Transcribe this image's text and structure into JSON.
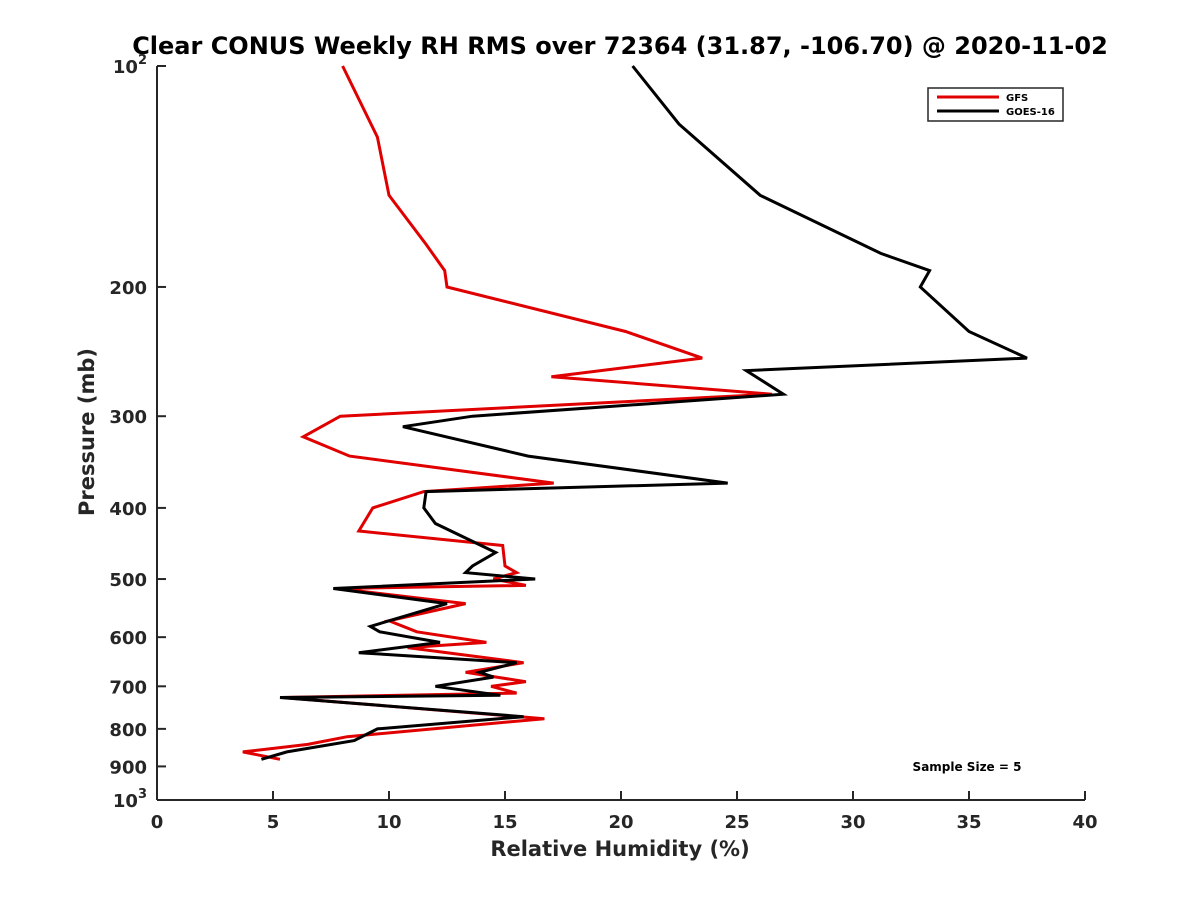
{
  "chart_data": {
    "type": "line",
    "title": "Clear CONUS Weekly RH RMS over 72364 (31.87, -106.70) @ 2020-11-02",
    "xlabel": "Relative Humidity (%)",
    "ylabel": "Pressure (mb)",
    "xlim": [
      0,
      40
    ],
    "ylim": [
      100,
      1000
    ],
    "y_scale": "log",
    "y_reversed": true,
    "x_ticks": [
      "0",
      "5",
      "10",
      "15",
      "20",
      "25",
      "30",
      "35",
      "40"
    ],
    "y_ticks": [
      {
        "value": 100,
        "base": "10",
        "exp": "2"
      },
      {
        "value": 200,
        "label": "200"
      },
      {
        "value": 300,
        "label": "300"
      },
      {
        "value": 400,
        "label": "400"
      },
      {
        "value": 500,
        "label": "500"
      },
      {
        "value": 600,
        "label": "600"
      },
      {
        "value": 700,
        "label": "700"
      },
      {
        "value": 800,
        "label": "800"
      },
      {
        "value": 900,
        "label": "900"
      },
      {
        "value": 1000,
        "base": "10",
        "exp": "3"
      }
    ],
    "grid": false,
    "legend_position": "top-right",
    "annotation": "Sample Size = 5",
    "series": [
      {
        "name": "GFS",
        "color": "#e00000",
        "points": [
          [
            8.0,
            100
          ],
          [
            9.5,
            125
          ],
          [
            10.0,
            150
          ],
          [
            11.6,
            175
          ],
          [
            12.4,
            190
          ],
          [
            12.5,
            200
          ],
          [
            20.2,
            230
          ],
          [
            23.5,
            250
          ],
          [
            17.0,
            265
          ],
          [
            26.5,
            280
          ],
          [
            7.9,
            300
          ],
          [
            6.3,
            320
          ],
          [
            8.3,
            340
          ],
          [
            17.1,
            370
          ],
          [
            11.5,
            380
          ],
          [
            9.3,
            400
          ],
          [
            8.7,
            430
          ],
          [
            14.9,
            450
          ],
          [
            15.0,
            480
          ],
          [
            15.5,
            490
          ],
          [
            14.5,
            500
          ],
          [
            15.9,
            510
          ],
          [
            7.8,
            515
          ],
          [
            13.3,
            540
          ],
          [
            10.0,
            570
          ],
          [
            11.2,
            590
          ],
          [
            14.2,
            610
          ],
          [
            10.8,
            620
          ],
          [
            15.8,
            650
          ],
          [
            13.3,
            670
          ],
          [
            15.9,
            690
          ],
          [
            14.4,
            700
          ],
          [
            15.5,
            715
          ],
          [
            5.4,
            725
          ],
          [
            16.7,
            775
          ],
          [
            8.2,
            820
          ],
          [
            6.5,
            840
          ],
          [
            3.7,
            860
          ],
          [
            5.3,
            880
          ]
        ]
      },
      {
        "name": "GOES-16",
        "color": "#000000",
        "points": [
          [
            20.5,
            100
          ],
          [
            22.5,
            120
          ],
          [
            26.0,
            150
          ],
          [
            31.2,
            180
          ],
          [
            33.3,
            190
          ],
          [
            32.9,
            200
          ],
          [
            35.0,
            230
          ],
          [
            37.5,
            250
          ],
          [
            25.4,
            260
          ],
          [
            27.0,
            280
          ],
          [
            13.6,
            300
          ],
          [
            10.6,
            310
          ],
          [
            16.0,
            340
          ],
          [
            24.6,
            370
          ],
          [
            11.6,
            380
          ],
          [
            11.5,
            400
          ],
          [
            12.0,
            420
          ],
          [
            14.6,
            460
          ],
          [
            13.6,
            480
          ],
          [
            13.3,
            490
          ],
          [
            16.3,
            500
          ],
          [
            7.6,
            515
          ],
          [
            12.5,
            540
          ],
          [
            9.2,
            580
          ],
          [
            9.6,
            590
          ],
          [
            12.2,
            610
          ],
          [
            8.7,
            630
          ],
          [
            15.5,
            650
          ],
          [
            13.9,
            670
          ],
          [
            14.5,
            680
          ],
          [
            12.0,
            700
          ],
          [
            14.8,
            720
          ],
          [
            5.3,
            725
          ],
          [
            15.8,
            770
          ],
          [
            9.5,
            800
          ],
          [
            8.5,
            830
          ],
          [
            5.6,
            860
          ],
          [
            4.5,
            880
          ]
        ]
      }
    ]
  }
}
